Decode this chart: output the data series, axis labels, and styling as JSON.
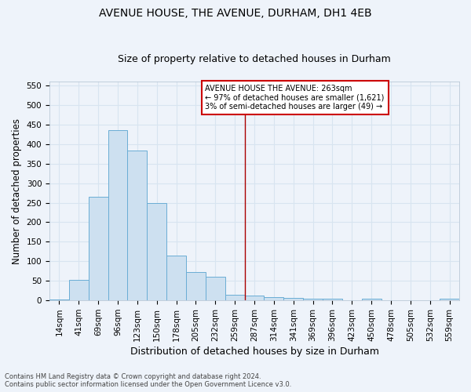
{
  "title": "AVENUE HOUSE, THE AVENUE, DURHAM, DH1 4EB",
  "subtitle": "Size of property relative to detached houses in Durham",
  "xlabel": "Distribution of detached houses by size in Durham",
  "ylabel": "Number of detached properties",
  "footer1": "Contains HM Land Registry data © Crown copyright and database right 2024.",
  "footer2": "Contains public sector information licensed under the Open Government Licence v3.0.",
  "categories": [
    "14sqm",
    "41sqm",
    "69sqm",
    "96sqm",
    "123sqm",
    "150sqm",
    "178sqm",
    "205sqm",
    "232sqm",
    "259sqm",
    "287sqm",
    "314sqm",
    "341sqm",
    "369sqm",
    "396sqm",
    "423sqm",
    "450sqm",
    "478sqm",
    "505sqm",
    "532sqm",
    "559sqm"
  ],
  "values": [
    3,
    52,
    265,
    435,
    383,
    250,
    115,
    72,
    61,
    15,
    13,
    9,
    7,
    5,
    4,
    0,
    4,
    0,
    0,
    0,
    5
  ],
  "bar_color": "#cde0f0",
  "bar_edge_color": "#6aadd5",
  "vline_x_index": 9,
  "vline_color": "#aa0000",
  "ylim": [
    0,
    560
  ],
  "yticks": [
    0,
    50,
    100,
    150,
    200,
    250,
    300,
    350,
    400,
    450,
    500,
    550
  ],
  "legend_title": "AVENUE HOUSE THE AVENUE: 263sqm",
  "legend_line1": "← 97% of detached houses are smaller (1,621)",
  "legend_line2": "3% of semi-detached houses are larger (49) →",
  "legend_box_color": "#ffffff",
  "legend_box_edge": "#cc0000",
  "bg_color": "#eef3fa",
  "grid_color": "#d8e4f0",
  "title_fontsize": 10,
  "subtitle_fontsize": 9,
  "axis_label_fontsize": 8.5,
  "tick_fontsize": 7.5,
  "legend_fontsize": 7
}
